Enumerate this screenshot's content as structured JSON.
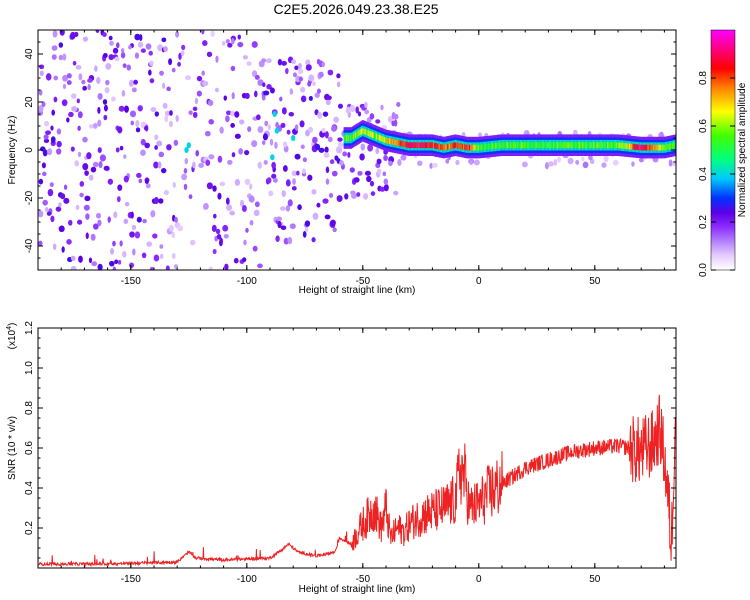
{
  "figure": {
    "title": "C2E5.2026.049.23.38.E25"
  },
  "colors": {
    "spectrum_cmap": [
      "#ffffff",
      "#e6ccff",
      "#b380ff",
      "#8c2bff",
      "#5a00e6",
      "#0033ff",
      "#00c8ff",
      "#00ff80",
      "#40ff00",
      "#ffff00",
      "#ff8000",
      "#ff0000",
      "#ff0080",
      "#ff00ff"
    ],
    "snr_line": "#ee2222"
  },
  "chart_data": [
    {
      "type": "heatmap",
      "xlabel": "Height of straight line (km)",
      "ylabel": "Frequency (Hz)",
      "xlim": [
        -190,
        85
      ],
      "ylim": [
        -50,
        50
      ],
      "x_ticks": [
        -150,
        -100,
        -50,
        0,
        50
      ],
      "x_tick_labels": [
        "-150",
        "-100",
        "-50",
        "0",
        "50"
      ],
      "y_ticks": [
        -40,
        -20,
        0,
        20,
        40
      ],
      "y_tick_labels": [
        "-40",
        "-20",
        "0",
        "20",
        "40"
      ],
      "colorbar": {
        "label": "Normalized spectral amplitude",
        "range": [
          0,
          1
        ],
        "ticks": [
          0.0,
          0.2,
          0.4,
          0.6,
          0.8
        ],
        "tick_labels": [
          "0.0",
          "0.2",
          "0.4",
          "0.6",
          "0.8"
        ]
      },
      "ridge": {
        "description_points_x": [
          -55,
          -50,
          -45,
          -40,
          -35,
          -30,
          -25,
          -20,
          -15,
          -10,
          -5,
          0,
          10,
          20,
          30,
          40,
          50,
          60,
          70,
          80,
          85
        ],
        "frequency_hz": [
          5,
          8,
          6,
          4,
          3,
          2,
          2,
          2,
          1,
          2,
          1,
          1,
          2,
          2,
          2,
          2,
          2,
          2,
          1,
          1,
          2
        ],
        "amplitude": [
          0.55,
          0.65,
          0.6,
          0.65,
          0.8,
          0.85,
          0.9,
          0.85,
          0.75,
          0.8,
          0.85,
          0.55,
          0.55,
          0.55,
          0.55,
          0.55,
          0.55,
          0.55,
          0.9,
          0.6,
          0.5
        ]
      }
    },
    {
      "type": "line",
      "xlabel": "Height of straight line (km)",
      "ylabel": "SNR (10 * v/v)",
      "y_exponent_label": "(x10",
      "y_exponent_power": "4",
      "y_exponent_close": ")",
      "xlim": [
        -190,
        85
      ],
      "ylim": [
        0,
        1.2
      ],
      "x_ticks": [
        -150,
        -100,
        -50,
        0,
        50
      ],
      "x_tick_labels": [
        "-150",
        "-100",
        "-50",
        "0",
        "50"
      ],
      "y_ticks": [
        0.2,
        0.4,
        0.6,
        0.8,
        1.0,
        1.2
      ],
      "y_tick_labels": [
        "0.2",
        "0.4",
        "0.6",
        "0.8",
        "1.0",
        "1.2"
      ],
      "series": [
        {
          "x": [
            -190,
            -160,
            -130,
            -125,
            -122,
            -110,
            -90,
            -85,
            -82,
            -80,
            -78,
            -70,
            -62,
            -60,
            -55,
            -50,
            -45,
            -42,
            -40,
            -38,
            -35,
            -32,
            -30,
            -25,
            -20,
            -15,
            -10,
            -8,
            -6,
            -4,
            0,
            5,
            10,
            15,
            20,
            30,
            40,
            50,
            60,
            65,
            70,
            72,
            75,
            78,
            80,
            82,
            83,
            84,
            85
          ],
          "y": [
            0.02,
            0.02,
            0.03,
            0.08,
            0.05,
            0.04,
            0.05,
            0.09,
            0.12,
            0.1,
            0.08,
            0.06,
            0.08,
            0.15,
            0.12,
            0.22,
            0.3,
            0.2,
            0.3,
            0.15,
            0.2,
            0.18,
            0.22,
            0.26,
            0.28,
            0.3,
            0.34,
            0.5,
            0.45,
            0.3,
            0.32,
            0.38,
            0.42,
            0.46,
            0.5,
            0.54,
            0.58,
            0.6,
            0.61,
            0.6,
            0.58,
            0.6,
            0.62,
            0.7,
            0.55,
            0.3,
            0.1,
            0.5,
            0.9
          ]
        }
      ]
    }
  ]
}
